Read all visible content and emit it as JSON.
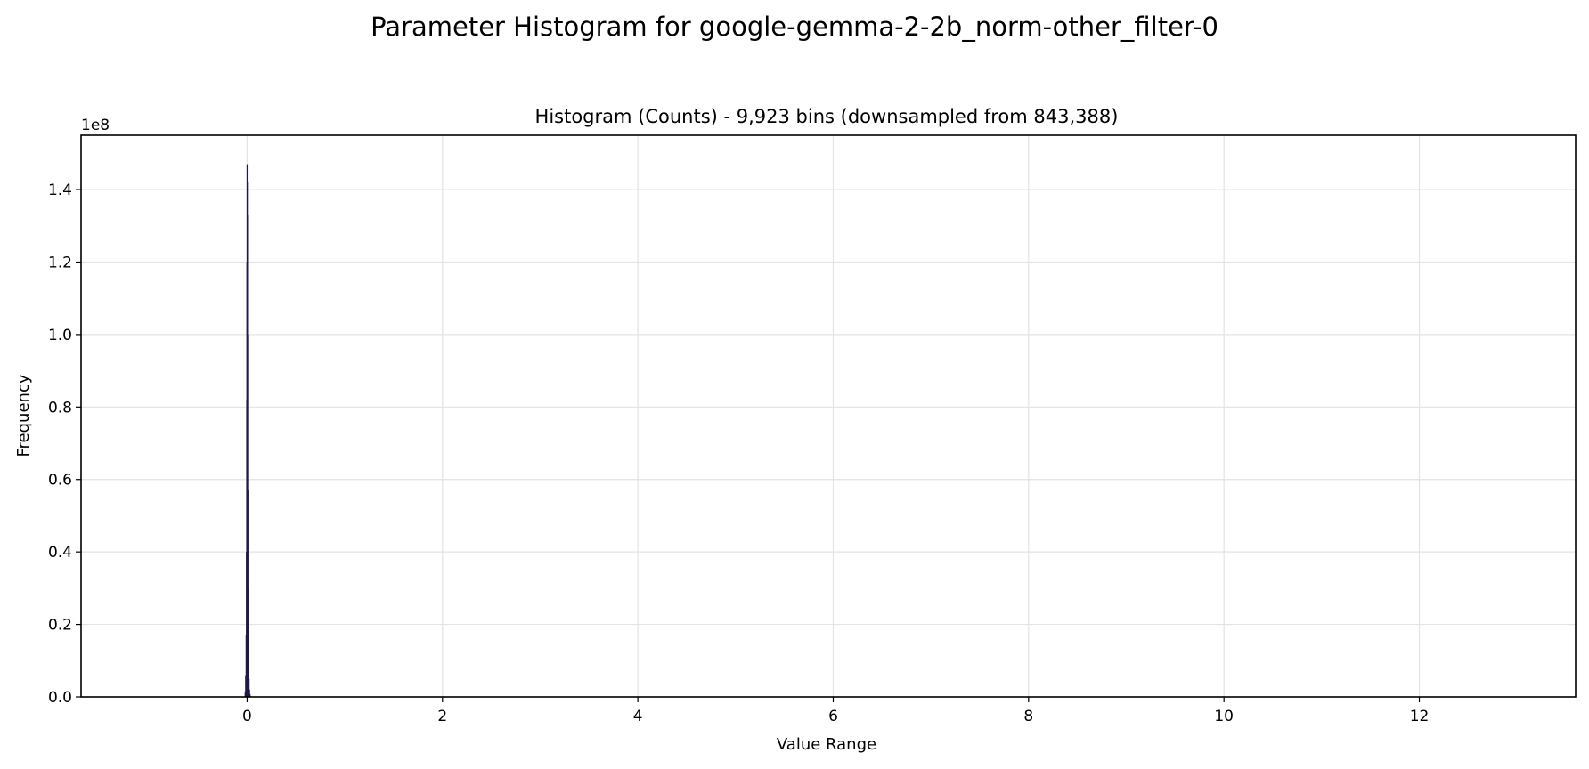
{
  "figure": {
    "suptitle": "Parameter Histogram for google-gemma-2-2b_norm-other_filter-0"
  },
  "chart_data": {
    "type": "bar",
    "title": "Histogram (Counts) - 9,923 bins (downsampled from 843,388)",
    "xlabel": "Value Range",
    "ylabel": "Frequency",
    "y_offset_label": "1e8",
    "y_scale": 100000000,
    "xlim": [
      -1.7,
      13.6
    ],
    "ylim": [
      0,
      155000000
    ],
    "x_ticks": [
      0,
      2,
      4,
      6,
      8,
      10,
      12
    ],
    "y_ticks": [
      0,
      20000000,
      40000000,
      60000000,
      80000000,
      100000000,
      120000000,
      140000000
    ],
    "y_tick_labels": [
      "0.0",
      "0.2",
      "0.4",
      "0.6",
      "0.8",
      "1.0",
      "1.2",
      "1.4"
    ],
    "grid": true,
    "bar_color": "#1f1a4a",
    "x": [
      -0.025,
      -0.02,
      -0.015,
      -0.01,
      -0.007,
      -0.004,
      -0.002,
      0.0,
      0.002,
      0.004,
      0.006,
      0.008,
      0.011,
      0.014,
      0.017,
      0.02,
      0.025,
      0.03,
      0.035
    ],
    "values": [
      200000,
      1500000,
      6000000,
      17000000,
      40000000,
      82000000,
      120000000,
      147000000,
      142000000,
      133000000,
      100000000,
      57000000,
      30000000,
      15000000,
      7000000,
      5000000,
      2000000,
      800000,
      200000
    ]
  }
}
